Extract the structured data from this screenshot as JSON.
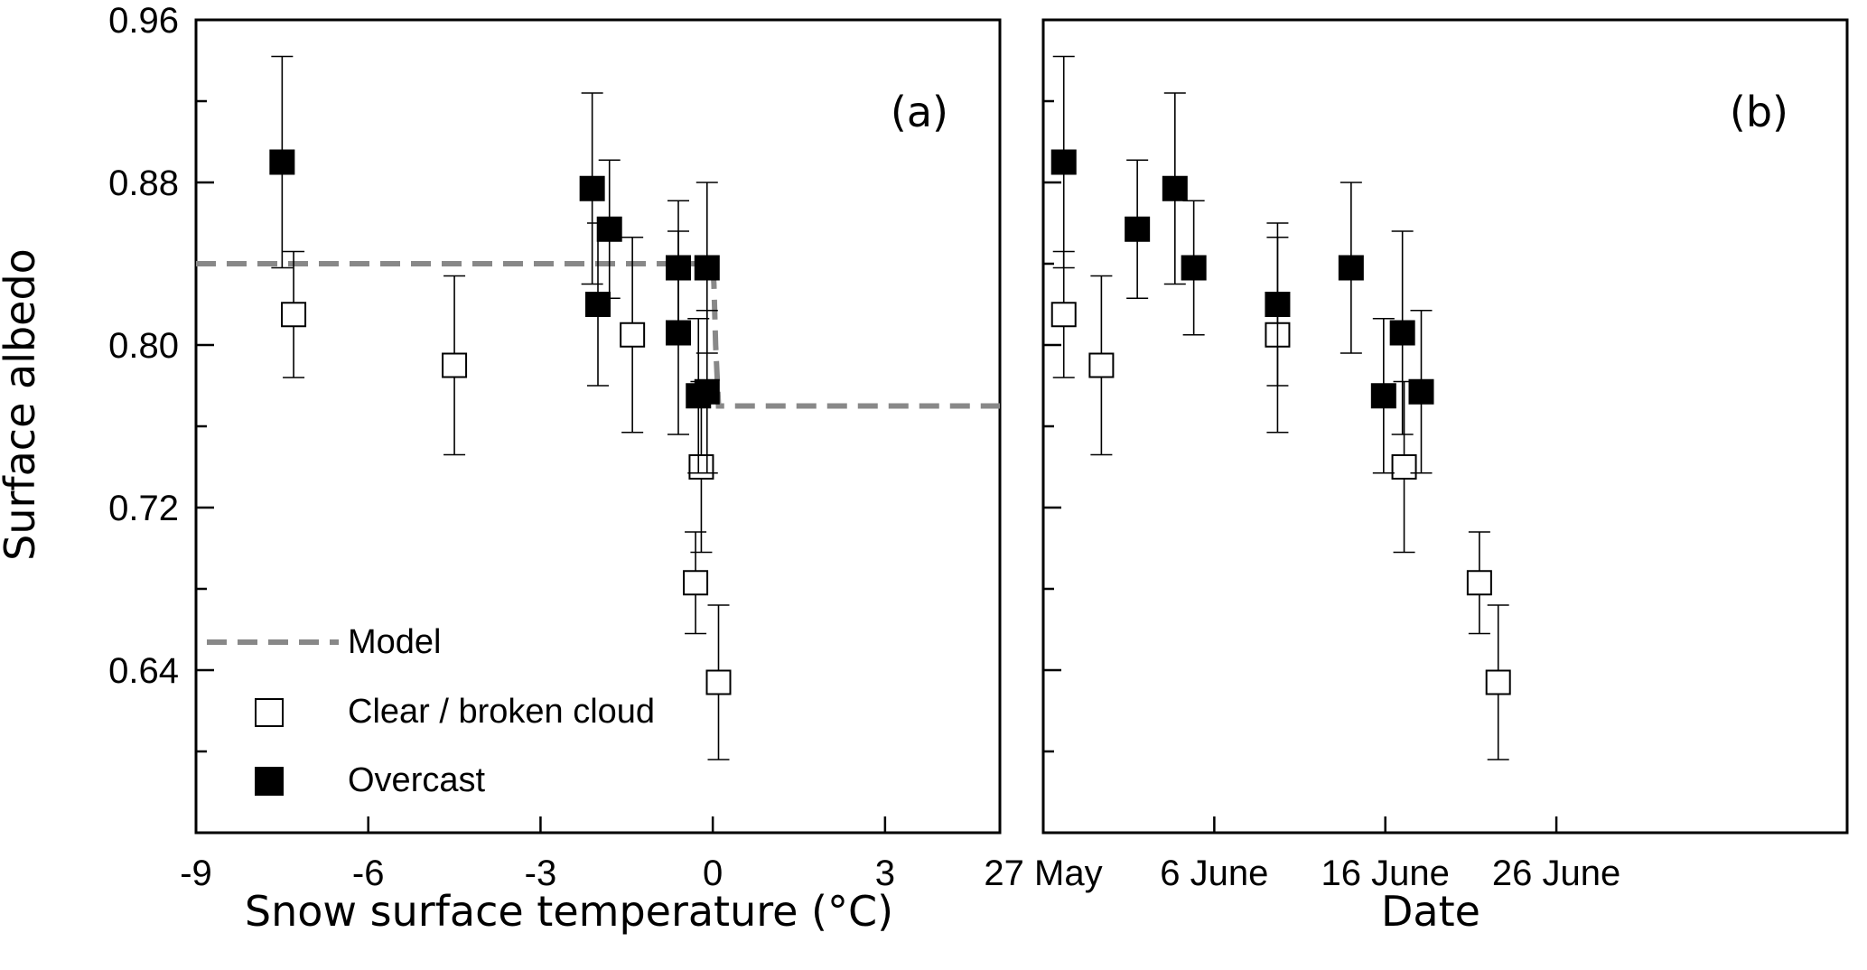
{
  "chart_data": [
    {
      "type": "scatter",
      "panel_label": "(a)",
      "xlabel": "Snow surface temperature (°C)",
      "ylabel": "Surface albedo",
      "xlim": [
        -9,
        5
      ],
      "ylim": [
        0.56,
        0.96
      ],
      "x_ticks": [
        -9,
        -6,
        -3,
        0,
        3
      ],
      "y_ticks": [
        0.64,
        0.72,
        0.8,
        0.88,
        0.96
      ],
      "legend": {
        "placement": "bottom-left",
        "model_label": "Model",
        "clear_label": "Clear / broken cloud",
        "overcast_label": "Overcast"
      },
      "model": {
        "x": [
          -9,
          -0.6,
          0,
          0.02,
          0.05,
          0.1,
          5
        ],
        "y": [
          0.84,
          0.84,
          0.84,
          0.83,
          0.8,
          0.77,
          0.77
        ]
      },
      "series": [
        {
          "name": "Clear / broken cloud",
          "marker": "open-square",
          "points": [
            {
              "x": -7.3,
              "y": 0.815,
              "err": 0.031
            },
            {
              "x": -4.5,
              "y": 0.79,
              "err": 0.044
            },
            {
              "x": -1.4,
              "y": 0.805,
              "err": 0.048
            },
            {
              "x": -0.2,
              "y": 0.74,
              "err": 0.042
            },
            {
              "x": -0.3,
              "y": 0.683,
              "err": 0.025
            },
            {
              "x": 0.1,
              "y": 0.634,
              "err": 0.038
            }
          ]
        },
        {
          "name": "Overcast",
          "marker": "filled-square",
          "points": [
            {
              "x": -7.5,
              "y": 0.89,
              "err": 0.052
            },
            {
              "x": -2.1,
              "y": 0.877,
              "err": 0.047
            },
            {
              "x": -1.8,
              "y": 0.857,
              "err": 0.034
            },
            {
              "x": -2.0,
              "y": 0.82,
              "err": 0.04
            },
            {
              "x": -0.6,
              "y": 0.838,
              "err": 0.033
            },
            {
              "x": -0.1,
              "y": 0.838,
              "err": 0.042
            },
            {
              "x": -0.6,
              "y": 0.806,
              "err": 0.05
            },
            {
              "x": -0.25,
              "y": 0.775,
              "err": 0.038
            },
            {
              "x": -0.1,
              "y": 0.777,
              "err": 0.04
            }
          ]
        }
      ]
    },
    {
      "type": "scatter",
      "panel_label": "(b)",
      "xlabel": "Date",
      "xlim": [
        27,
        74
      ],
      "ylim": [
        0.56,
        0.96
      ],
      "x_ticks": [
        {
          "value": 27,
          "label": "27 May"
        },
        {
          "value": 37,
          "label": "6 June"
        },
        {
          "value": 47,
          "label": "16 June"
        },
        {
          "value": 57,
          "label": "26 June"
        }
      ],
      "y_ticks": [
        0.64,
        0.72,
        0.8,
        0.88,
        0.96
      ],
      "series": [
        {
          "name": "Clear / broken cloud",
          "marker": "open-square",
          "points": [
            {
              "x": 28.2,
              "y": 0.815,
              "err": 0.031
            },
            {
              "x": 30.4,
              "y": 0.79,
              "err": 0.044
            },
            {
              "x": 40.7,
              "y": 0.805,
              "err": 0.048
            },
            {
              "x": 48.1,
              "y": 0.74,
              "err": 0.042
            },
            {
              "x": 52.5,
              "y": 0.683,
              "err": 0.025
            },
            {
              "x": 53.6,
              "y": 0.634,
              "err": 0.038
            }
          ]
        },
        {
          "name": "Overcast",
          "marker": "filled-square",
          "points": [
            {
              "x": 28.2,
              "y": 0.89,
              "err": 0.052
            },
            {
              "x": 32.5,
              "y": 0.857,
              "err": 0.034
            },
            {
              "x": 34.7,
              "y": 0.877,
              "err": 0.047
            },
            {
              "x": 35.8,
              "y": 0.838,
              "err": 0.033
            },
            {
              "x": 40.7,
              "y": 0.82,
              "err": 0.04
            },
            {
              "x": 45.0,
              "y": 0.838,
              "err": 0.042
            },
            {
              "x": 46.9,
              "y": 0.775,
              "err": 0.038
            },
            {
              "x": 48.0,
              "y": 0.806,
              "err": 0.05
            },
            {
              "x": 49.1,
              "y": 0.777,
              "err": 0.04
            }
          ]
        }
      ]
    }
  ]
}
